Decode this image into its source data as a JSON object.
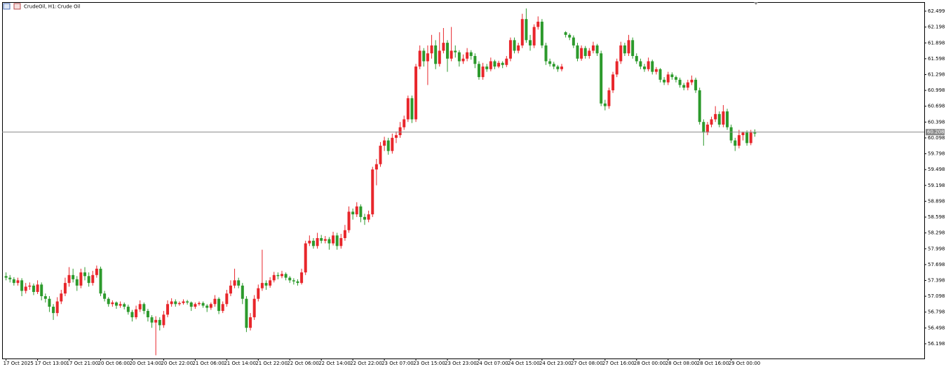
{
  "chart_data": {
    "type": "candlestick",
    "symbol": "CrudeOil, H1:",
    "description": "Crude Oil",
    "up_color": "#e8262b",
    "down_color": "#2c9a2c",
    "last_price": 60.208,
    "ylim": [
      55.919,
      62.671
    ],
    "yticks": [
      62.499,
      62.198,
      61.898,
      61.598,
      61.298,
      60.998,
      60.698,
      60.398,
      60.098,
      59.798,
      59.498,
      59.198,
      58.898,
      58.598,
      58.298,
      57.998,
      57.698,
      57.398,
      57.098,
      56.798,
      56.498,
      56.198
    ],
    "xlim": [
      -1,
      233
    ],
    "xticks": [
      {
        "value": 0,
        "label": "17 Oct 2025"
      },
      {
        "value": 8,
        "label": "17 Oct 13:00"
      },
      {
        "value": 16,
        "label": "17 Oct 21:00"
      },
      {
        "value": 24,
        "label": "20 Oct 06:00"
      },
      {
        "value": 32,
        "label": "20 Oct 14:00"
      },
      {
        "value": 40,
        "label": "20 Oct 22:00"
      },
      {
        "value": 48,
        "label": "21 Oct 06:00"
      },
      {
        "value": 56,
        "label": "21 Oct 14:00"
      },
      {
        "value": 64,
        "label": "21 Oct 22:00"
      },
      {
        "value": 72,
        "label": "22 Oct 06:00"
      },
      {
        "value": 80,
        "label": "22 Oct 14:00"
      },
      {
        "value": 88,
        "label": "22 Oct 22:00"
      },
      {
        "value": 96,
        "label": "23 Oct 07:00"
      },
      {
        "value": 104,
        "label": "23 Oct 15:00"
      },
      {
        "value": 112,
        "label": "23 Oct 23:00"
      },
      {
        "value": 120,
        "label": "24 Oct 07:00"
      },
      {
        "value": 128,
        "label": "24 Oct 15:00"
      },
      {
        "value": 136,
        "label": "24 Oct 23:00"
      },
      {
        "value": 144,
        "label": "27 Oct 08:00"
      },
      {
        "value": 152,
        "label": "27 Oct 16:00"
      },
      {
        "value": 160,
        "label": "28 Oct 00:00"
      },
      {
        "value": 168,
        "label": "28 Oct 08:00"
      },
      {
        "value": 176,
        "label": "28 Oct 16:00"
      },
      {
        "value": 184,
        "label": "29 Oct 00:00"
      }
    ],
    "ohlc": [
      [
        57.48,
        57.55,
        57.4,
        57.45
      ],
      [
        57.45,
        57.5,
        57.36,
        57.42
      ],
      [
        57.42,
        57.46,
        57.3,
        57.35
      ],
      [
        57.35,
        57.45,
        57.3,
        57.4
      ],
      [
        57.4,
        57.44,
        57.1,
        57.2
      ],
      [
        57.2,
        57.35,
        57.15,
        57.28
      ],
      [
        57.28,
        57.36,
        57.22,
        57.3
      ],
      [
        57.3,
        57.34,
        57.12,
        57.18
      ],
      [
        57.18,
        57.4,
        57.14,
        57.32
      ],
      [
        57.32,
        57.36,
        57.02,
        57.1
      ],
      [
        57.1,
        57.15,
        56.98,
        57.05
      ],
      [
        57.05,
        57.1,
        56.8,
        56.9
      ],
      [
        56.9,
        56.95,
        56.65,
        56.78
      ],
      [
        56.78,
        57.08,
        56.72,
        57.0
      ],
      [
        57.0,
        57.22,
        56.95,
        57.15
      ],
      [
        57.15,
        57.45,
        57.1,
        57.35
      ],
      [
        57.35,
        57.65,
        57.28,
        57.5
      ],
      [
        57.5,
        57.62,
        57.36,
        57.42
      ],
      [
        57.42,
        57.48,
        57.2,
        57.3
      ],
      [
        57.3,
        57.62,
        57.25,
        57.55
      ],
      [
        57.55,
        57.65,
        57.4,
        57.48
      ],
      [
        57.48,
        57.55,
        57.28,
        57.35
      ],
      [
        57.35,
        57.58,
        57.3,
        57.5
      ],
      [
        57.5,
        57.68,
        57.45,
        57.62
      ],
      [
        57.62,
        57.66,
        57.1,
        57.15
      ],
      [
        57.15,
        57.2,
        57.0,
        57.05
      ],
      [
        57.05,
        57.08,
        56.9,
        56.95
      ],
      [
        56.95,
        57.02,
        56.9,
        56.98
      ],
      [
        56.98,
        57.0,
        56.86,
        56.92
      ],
      [
        56.92,
        57.0,
        56.88,
        56.95
      ],
      [
        56.95,
        56.98,
        56.85,
        56.9
      ],
      [
        56.9,
        56.94,
        56.75,
        56.8
      ],
      [
        56.8,
        56.84,
        56.62,
        56.7
      ],
      [
        56.7,
        56.92,
        56.66,
        56.85
      ],
      [
        56.85,
        57.02,
        56.8,
        56.95
      ],
      [
        56.95,
        56.98,
        56.76,
        56.82
      ],
      [
        56.82,
        56.86,
        56.62,
        56.7
      ],
      [
        56.7,
        56.74,
        56.5,
        56.6
      ],
      [
        56.6,
        56.72,
        55.98,
        56.65
      ],
      [
        56.65,
        56.7,
        56.45,
        56.55
      ],
      [
        56.55,
        56.82,
        56.5,
        56.75
      ],
      [
        56.75,
        57.02,
        56.7,
        56.95
      ],
      [
        56.95,
        57.06,
        56.9,
        57.0
      ],
      [
        57.0,
        57.04,
        56.9,
        56.95
      ],
      [
        56.95,
        57.0,
        56.92,
        56.97
      ],
      [
        56.97,
        57.04,
        56.94,
        57.0
      ],
      [
        57.0,
        57.03,
        56.94,
        56.98
      ],
      [
        56.98,
        57.0,
        56.82,
        56.9
      ],
      [
        56.9,
        56.98,
        56.86,
        56.95
      ],
      [
        56.95,
        57.0,
        56.92,
        56.97
      ],
      [
        56.97,
        57.0,
        56.88,
        56.92
      ],
      [
        56.92,
        56.95,
        56.8,
        56.88
      ],
      [
        56.88,
        56.98,
        56.84,
        56.95
      ],
      [
        56.95,
        57.12,
        56.9,
        57.05
      ],
      [
        57.05,
        57.08,
        56.76,
        56.82
      ],
      [
        56.82,
        57.0,
        56.78,
        56.95
      ],
      [
        56.95,
        57.22,
        56.9,
        57.15
      ],
      [
        57.15,
        57.4,
        57.1,
        57.3
      ],
      [
        57.3,
        57.62,
        57.25,
        57.4
      ],
      [
        57.4,
        57.45,
        57.25,
        57.3
      ],
      [
        57.3,
        57.35,
        56.95,
        57.05
      ],
      [
        57.05,
        57.1,
        56.42,
        56.5
      ],
      [
        56.5,
        56.78,
        56.45,
        56.7
      ],
      [
        56.7,
        57.12,
        56.65,
        57.05
      ],
      [
        57.05,
        57.32,
        57.0,
        57.25
      ],
      [
        57.25,
        57.98,
        57.2,
        57.35
      ],
      [
        57.35,
        57.4,
        57.22,
        57.3
      ],
      [
        57.3,
        57.46,
        57.26,
        57.4
      ],
      [
        57.4,
        57.56,
        57.36,
        57.5
      ],
      [
        57.5,
        57.55,
        57.42,
        57.48
      ],
      [
        57.48,
        57.58,
        57.44,
        57.52
      ],
      [
        57.52,
        57.55,
        57.4,
        57.45
      ],
      [
        57.45,
        57.48,
        57.35,
        57.4
      ],
      [
        57.4,
        57.44,
        57.32,
        57.38
      ],
      [
        57.38,
        57.42,
        57.3,
        57.35
      ],
      [
        57.35,
        57.62,
        57.32,
        57.55
      ],
      [
        57.55,
        58.15,
        57.5,
        58.1
      ],
      [
        58.1,
        58.25,
        58.05,
        58.15
      ],
      [
        58.15,
        58.2,
        58.0,
        58.05
      ],
      [
        58.05,
        58.3,
        58.0,
        58.2
      ],
      [
        58.2,
        58.26,
        58.1,
        58.15
      ],
      [
        58.15,
        58.24,
        58.1,
        58.18
      ],
      [
        58.18,
        58.22,
        57.98,
        58.1
      ],
      [
        58.1,
        58.32,
        58.06,
        58.25
      ],
      [
        58.25,
        58.3,
        57.98,
        58.05
      ],
      [
        58.05,
        58.28,
        58.0,
        58.2
      ],
      [
        58.2,
        58.45,
        58.15,
        58.35
      ],
      [
        58.35,
        58.8,
        58.3,
        58.7
      ],
      [
        58.7,
        58.76,
        58.55,
        58.65
      ],
      [
        58.65,
        58.88,
        58.6,
        58.8
      ],
      [
        58.8,
        58.84,
        58.5,
        58.6
      ],
      [
        58.6,
        58.66,
        58.45,
        58.55
      ],
      [
        58.55,
        58.72,
        58.5,
        58.65
      ],
      [
        58.65,
        59.55,
        58.6,
        59.5
      ],
      [
        59.5,
        59.7,
        59.2,
        59.6
      ],
      [
        59.6,
        60.02,
        59.55,
        59.95
      ],
      [
        59.95,
        60.12,
        59.85,
        60.05
      ],
      [
        60.05,
        60.1,
        59.78,
        59.85
      ],
      [
        59.85,
        60.18,
        59.8,
        60.1
      ],
      [
        60.1,
        60.22,
        60.0,
        60.15
      ],
      [
        60.15,
        60.4,
        60.1,
        60.3
      ],
      [
        60.3,
        60.52,
        60.25,
        60.45
      ],
      [
        60.45,
        60.9,
        60.4,
        60.85
      ],
      [
        60.85,
        60.9,
        60.38,
        60.45
      ],
      [
        60.45,
        61.5,
        60.4,
        61.45
      ],
      [
        61.45,
        61.85,
        61.4,
        61.75
      ],
      [
        61.75,
        61.8,
        61.45,
        61.55
      ],
      [
        61.55,
        61.85,
        61.1,
        61.7
      ],
      [
        61.7,
        62.05,
        61.6,
        61.85
      ],
      [
        61.85,
        61.95,
        61.4,
        61.5
      ],
      [
        61.5,
        62.1,
        61.45,
        61.75
      ],
      [
        61.75,
        62.18,
        61.7,
        61.9
      ],
      [
        61.9,
        61.95,
        61.35,
        61.6
      ],
      [
        61.6,
        62.2,
        61.55,
        61.75
      ],
      [
        61.75,
        61.85,
        61.62,
        61.72
      ],
      [
        61.72,
        61.76,
        61.45,
        61.55
      ],
      [
        61.55,
        61.68,
        61.5,
        61.6
      ],
      [
        61.6,
        61.8,
        61.55,
        61.72
      ],
      [
        61.72,
        61.76,
        61.58,
        61.65
      ],
      [
        61.65,
        61.7,
        61.42,
        61.5
      ],
      [
        61.5,
        61.55,
        61.2,
        61.25
      ],
      [
        61.25,
        61.52,
        61.2,
        61.45
      ],
      [
        61.45,
        61.5,
        61.35,
        61.4
      ],
      [
        61.4,
        61.62,
        61.36,
        61.55
      ],
      [
        61.55,
        61.58,
        61.4,
        61.45
      ],
      [
        61.45,
        61.56,
        61.42,
        61.52
      ],
      [
        61.52,
        61.55,
        61.42,
        61.48
      ],
      [
        61.48,
        61.65,
        61.44,
        61.6
      ],
      [
        61.6,
        62.0,
        61.55,
        61.95
      ],
      [
        61.95,
        62.0,
        61.7,
        61.75
      ],
      [
        61.75,
        61.9,
        61.7,
        61.85
      ],
      [
        61.85,
        62.45,
        61.8,
        62.35
      ],
      [
        62.35,
        62.55,
        61.9,
        61.95
      ],
      [
        61.95,
        62.05,
        61.75,
        61.85
      ],
      [
        61.85,
        62.25,
        61.8,
        62.2
      ],
      [
        62.2,
        62.4,
        62.15,
        62.3
      ],
      [
        62.3,
        62.35,
        61.8,
        61.85
      ],
      [
        61.85,
        61.9,
        61.48,
        61.55
      ],
      [
        61.55,
        61.6,
        61.45,
        61.5
      ],
      [
        61.5,
        61.54,
        61.4,
        61.45
      ],
      [
        61.45,
        61.48,
        61.35,
        61.4
      ],
      [
        61.4,
        61.5,
        61.36,
        61.45
      ],
      [
        62.1,
        62.12,
        62.0,
        62.05
      ],
      [
        62.05,
        62.08,
        61.95,
        62.0
      ],
      [
        62.0,
        62.04,
        61.8,
        61.85
      ],
      [
        61.85,
        61.9,
        61.55,
        61.6
      ],
      [
        61.6,
        61.85,
        61.56,
        61.8
      ],
      [
        61.8,
        61.84,
        61.6,
        61.65
      ],
      [
        61.65,
        61.8,
        61.6,
        61.75
      ],
      [
        61.75,
        61.92,
        61.7,
        61.85
      ],
      [
        61.85,
        61.88,
        61.65,
        61.7
      ],
      [
        61.7,
        61.75,
        60.7,
        60.75
      ],
      [
        60.75,
        60.82,
        60.62,
        60.7
      ],
      [
        60.7,
        61.05,
        60.65,
        61.0
      ],
      [
        61.0,
        61.35,
        60.95,
        61.3
      ],
      [
        61.3,
        61.6,
        61.25,
        61.55
      ],
      [
        61.55,
        61.92,
        61.5,
        61.85
      ],
      [
        61.85,
        61.9,
        61.65,
        61.7
      ],
      [
        61.7,
        62.05,
        61.65,
        61.95
      ],
      [
        61.95,
        62.0,
        61.6,
        61.65
      ],
      [
        61.65,
        61.7,
        61.5,
        61.55
      ],
      [
        61.55,
        61.6,
        61.4,
        61.45
      ],
      [
        61.45,
        61.5,
        61.35,
        61.4
      ],
      [
        61.4,
        61.62,
        61.36,
        61.55
      ],
      [
        61.55,
        61.58,
        61.3,
        61.35
      ],
      [
        61.35,
        61.44,
        61.3,
        61.4
      ],
      [
        61.4,
        61.42,
        61.15,
        61.2
      ],
      [
        61.2,
        61.25,
        61.1,
        61.15
      ],
      [
        61.15,
        61.35,
        61.1,
        61.3
      ],
      [
        61.3,
        61.34,
        61.2,
        61.25
      ],
      [
        61.25,
        61.28,
        61.15,
        61.2
      ],
      [
        61.2,
        61.24,
        61.05,
        61.1
      ],
      [
        61.1,
        61.14,
        61.0,
        61.05
      ],
      [
        61.05,
        61.2,
        61.0,
        61.15
      ],
      [
        61.15,
        61.28,
        61.1,
        61.2
      ],
      [
        61.2,
        61.24,
        60.95,
        61.0
      ],
      [
        61.0,
        61.05,
        60.35,
        60.4
      ],
      [
        60.4,
        60.45,
        59.95,
        60.2
      ],
      [
        60.2,
        60.4,
        60.15,
        60.35
      ],
      [
        60.35,
        60.5,
        60.3,
        60.45
      ],
      [
        60.45,
        60.7,
        60.4,
        60.55
      ],
      [
        60.55,
        60.6,
        60.3,
        60.35
      ],
      [
        60.35,
        60.72,
        60.3,
        60.6
      ],
      [
        60.6,
        60.65,
        60.25,
        60.3
      ],
      [
        60.3,
        60.35,
        60.0,
        60.05
      ],
      [
        60.05,
        60.1,
        59.85,
        59.95
      ],
      [
        59.95,
        60.25,
        59.9,
        60.15
      ],
      [
        60.15,
        60.22,
        60.05,
        60.2
      ],
      [
        60.2,
        60.24,
        59.95,
        60.0
      ],
      [
        60.0,
        60.25,
        59.96,
        60.2
      ],
      [
        60.2,
        60.26,
        60.12,
        60.18
      ]
    ]
  }
}
